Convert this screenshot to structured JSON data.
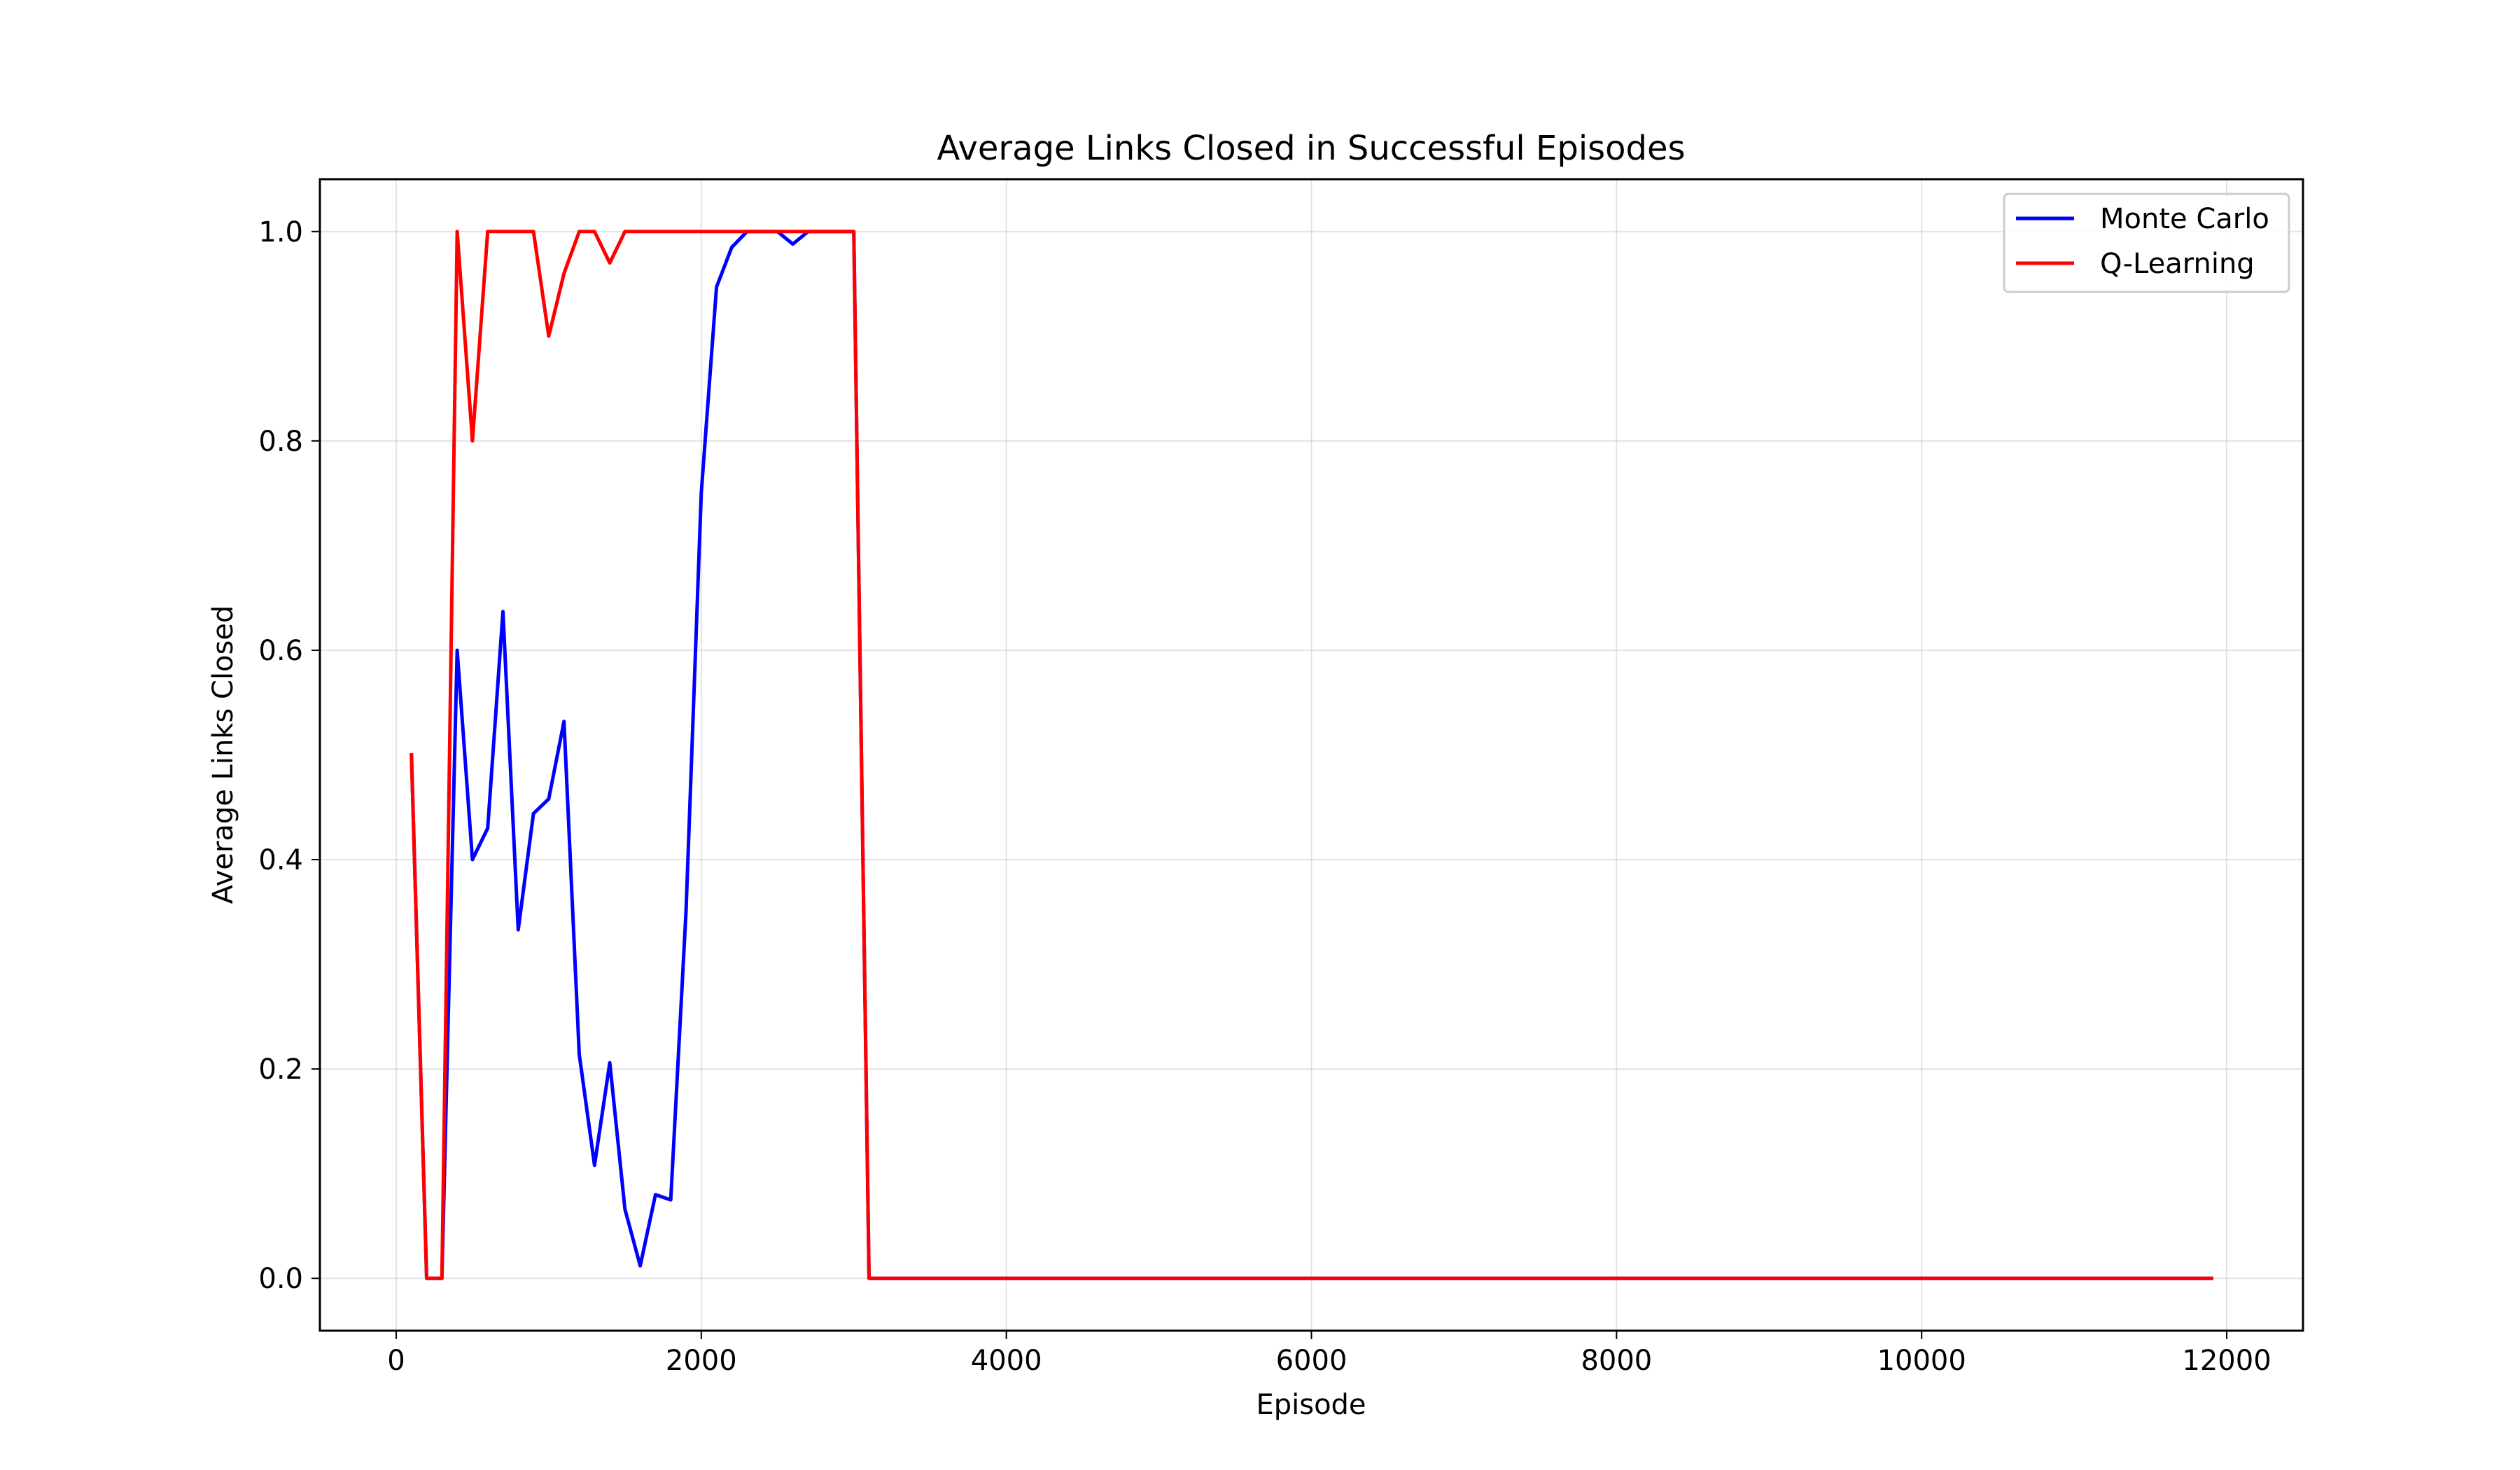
{
  "chart_data": {
    "type": "line",
    "title": "Average Links Closed in Successful Episodes",
    "xlabel": "Episode",
    "ylabel": "Average Links Closed",
    "xlim": [
      -500,
      12500
    ],
    "ylim": [
      -0.05,
      1.05
    ],
    "x_ticks": [
      0,
      2000,
      4000,
      6000,
      8000,
      10000,
      12000
    ],
    "y_ticks": [
      0.0,
      0.2,
      0.4,
      0.6,
      0.8,
      1.0
    ],
    "x_tick_labels": [
      "0",
      "2000",
      "4000",
      "6000",
      "8000",
      "10000",
      "12000"
    ],
    "y_tick_labels": [
      "0.0",
      "0.2",
      "0.4",
      "0.6",
      "0.8",
      "1.0"
    ],
    "grid": true,
    "legend_position": "top-right",
    "series": [
      {
        "name": "Monte Carlo",
        "color": "#0000ff",
        "x": [
          100,
          200,
          300,
          400,
          500,
          600,
          700,
          800,
          900,
          1000,
          1100,
          1200,
          1300,
          1400,
          1500,
          1600,
          1700,
          1800,
          1900,
          2000,
          2100,
          2200,
          2300,
          2400,
          2500,
          2600,
          2700,
          2800,
          2900,
          3000,
          3100,
          3200,
          3300,
          3400,
          3500,
          3600,
          3700,
          3800,
          3900,
          4000,
          4100,
          4200,
          4300,
          4400,
          4500,
          4600,
          4700,
          4800,
          4900,
          5000,
          5100,
          5200,
          5300,
          5400,
          5500,
          5600,
          5700,
          5800,
          5900,
          6000,
          6100,
          6200,
          6300,
          6400,
          6500,
          6600,
          6700,
          6800,
          6900,
          7000,
          7100,
          7200,
          7300,
          7400,
          7500,
          7600,
          7700,
          7800,
          7900,
          8000,
          8100,
          8200,
          8300,
          8400,
          8500,
          8600,
          8700,
          8800,
          8900,
          9000,
          9100,
          9200,
          9300,
          9400,
          9500,
          9600,
          9700,
          9800,
          9900,
          10000,
          10100,
          10200,
          10300,
          10400,
          10500,
          10600,
          10700,
          10800,
          10900,
          11000,
          11100,
          11200,
          11300,
          11400,
          11500,
          11600,
          11700,
          11800,
          11900
        ],
        "y": [
          0.5,
          0.0,
          0.0,
          0.6,
          0.4,
          0.43,
          0.637,
          0.333,
          0.444,
          0.458,
          0.532,
          0.214,
          0.108,
          0.206,
          0.066,
          0.012,
          0.08,
          0.075,
          0.35,
          0.75,
          0.947,
          0.985,
          1.0,
          1.0,
          1.0,
          0.988,
          1.0,
          1.0,
          1.0,
          1.0,
          0.0,
          0.0,
          0.0,
          0.0,
          0.0,
          0.0,
          0.0,
          0.0,
          0.0,
          0.0,
          0.0,
          0.0,
          0.0,
          0.0,
          0.0,
          0.0,
          0.0,
          0.0,
          0.0,
          0.0,
          0.0,
          0.0,
          0.0,
          0.0,
          0.0,
          0.0,
          0.0,
          0.0,
          0.0,
          0.0,
          0.0,
          0.0,
          0.0,
          0.0,
          0.0,
          0.0,
          0.0,
          0.0,
          0.0,
          0.0,
          0.0,
          0.0,
          0.0,
          0.0,
          0.0,
          0.0,
          0.0,
          0.0,
          0.0,
          0.0,
          0.0,
          0.0,
          0.0,
          0.0,
          0.0,
          0.0,
          0.0,
          0.0,
          0.0,
          0.0,
          0.0,
          0.0,
          0.0,
          0.0,
          0.0,
          0.0,
          0.0,
          0.0,
          0.0,
          0.0,
          0.0,
          0.0,
          0.0,
          0.0,
          0.0,
          0.0,
          0.0,
          0.0,
          0.0,
          0.0,
          0.0,
          0.0,
          0.0,
          0.0,
          0.0,
          0.0,
          0.0,
          0.0,
          0.0
        ]
      },
      {
        "name": "Q-Learning",
        "color": "#ff0000",
        "x": [
          100,
          200,
          300,
          400,
          500,
          600,
          700,
          800,
          900,
          1000,
          1100,
          1200,
          1300,
          1400,
          1500,
          1600,
          1700,
          1800,
          1900,
          2000,
          2100,
          2200,
          2300,
          2400,
          2500,
          2600,
          2700,
          2800,
          2900,
          3000,
          3100,
          3200,
          3300,
          3400,
          3500,
          3600,
          3700,
          3800,
          3900,
          4000,
          4100,
          4200,
          4300,
          4400,
          4500,
          4600,
          4700,
          4800,
          4900,
          5000,
          5100,
          5200,
          5300,
          5400,
          5500,
          5600,
          5700,
          5800,
          5900,
          6000,
          6100,
          6200,
          6300,
          6400,
          6500,
          6600,
          6700,
          6800,
          6900,
          7000,
          7100,
          7200,
          7300,
          7400,
          7500,
          7600,
          7700,
          7800,
          7900,
          8000,
          8100,
          8200,
          8300,
          8400,
          8500,
          8600,
          8700,
          8800,
          8900,
          9000,
          9100,
          9200,
          9300,
          9400,
          9500,
          9600,
          9700,
          9800,
          9900,
          10000,
          10100,
          10200,
          10300,
          10400,
          10500,
          10600,
          10700,
          10800,
          10900,
          11000,
          11100,
          11200,
          11300,
          11400,
          11500,
          11600,
          11700,
          11800,
          11900
        ],
        "y": [
          0.5,
          0.0,
          0.0,
          1.0,
          0.8,
          1.0,
          1.0,
          1.0,
          1.0,
          0.9,
          0.96,
          1.0,
          1.0,
          0.97,
          1.0,
          1.0,
          1.0,
          1.0,
          1.0,
          1.0,
          1.0,
          1.0,
          1.0,
          1.0,
          1.0,
          1.0,
          1.0,
          1.0,
          1.0,
          1.0,
          0.0,
          0.0,
          0.0,
          0.0,
          0.0,
          0.0,
          0.0,
          0.0,
          0.0,
          0.0,
          0.0,
          0.0,
          0.0,
          0.0,
          0.0,
          0.0,
          0.0,
          0.0,
          0.0,
          0.0,
          0.0,
          0.0,
          0.0,
          0.0,
          0.0,
          0.0,
          0.0,
          0.0,
          0.0,
          0.0,
          0.0,
          0.0,
          0.0,
          0.0,
          0.0,
          0.0,
          0.0,
          0.0,
          0.0,
          0.0,
          0.0,
          0.0,
          0.0,
          0.0,
          0.0,
          0.0,
          0.0,
          0.0,
          0.0,
          0.0,
          0.0,
          0.0,
          0.0,
          0.0,
          0.0,
          0.0,
          0.0,
          0.0,
          0.0,
          0.0,
          0.0,
          0.0,
          0.0,
          0.0,
          0.0,
          0.0,
          0.0,
          0.0,
          0.0,
          0.0,
          0.0,
          0.0,
          0.0,
          0.0,
          0.0,
          0.0,
          0.0,
          0.0,
          0.0,
          0.0,
          0.0,
          0.0,
          0.0,
          0.0,
          0.0,
          0.0,
          0.0,
          0.0,
          0.0
        ]
      }
    ]
  }
}
